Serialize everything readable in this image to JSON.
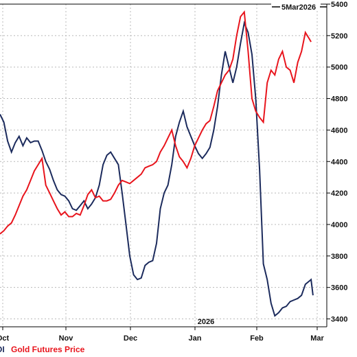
{
  "chart_data": {
    "type": "line",
    "date_label": "5Mar2026",
    "year_label": "2026",
    "x_tick_labels": [
      "Oct",
      "Nov",
      "Dec",
      "Jan",
      "Feb",
      "Mar"
    ],
    "y_axis": {
      "min": 3350,
      "max": 5400,
      "ticks": [
        3400,
        3600,
        3800,
        4000,
        4200,
        4400,
        4600,
        4800,
        5000,
        5200,
        5400
      ],
      "side": "right"
    },
    "grid": true,
    "legend": {
      "placement": "bottom-left",
      "entries": [
        "OI",
        "Gold Futures Price"
      ]
    },
    "colors": {
      "oi": "#1b2a5c",
      "gold": "#e8141c",
      "grid": "#b8b8b8",
      "axis": "#000000"
    },
    "series": [
      {
        "name": "OI",
        "values": [
          [
            0,
            4700
          ],
          [
            2,
            4650
          ],
          [
            4,
            4530
          ],
          [
            6,
            4460
          ],
          [
            8,
            4520
          ],
          [
            10,
            4560
          ],
          [
            12,
            4500
          ],
          [
            14,
            4550
          ],
          [
            16,
            4520
          ],
          [
            18,
            4530
          ],
          [
            20,
            4530
          ],
          [
            22,
            4470
          ],
          [
            24,
            4400
          ],
          [
            26,
            4350
          ],
          [
            28,
            4280
          ],
          [
            30,
            4220
          ],
          [
            32,
            4190
          ],
          [
            34,
            4180
          ],
          [
            36,
            4150
          ],
          [
            38,
            4100
          ],
          [
            40,
            4090
          ],
          [
            42,
            4120
          ],
          [
            44,
            4150
          ],
          [
            46,
            4100
          ],
          [
            48,
            4130
          ],
          [
            50,
            4170
          ],
          [
            52,
            4250
          ],
          [
            54,
            4380
          ],
          [
            56,
            4440
          ],
          [
            58,
            4460
          ],
          [
            60,
            4420
          ],
          [
            62,
            4380
          ],
          [
            64,
            4200
          ],
          [
            66,
            4000
          ],
          [
            68,
            3800
          ],
          [
            70,
            3680
          ],
          [
            72,
            3650
          ],
          [
            74,
            3660
          ],
          [
            76,
            3740
          ],
          [
            78,
            3760
          ],
          [
            80,
            3770
          ],
          [
            82,
            3880
          ],
          [
            84,
            4100
          ],
          [
            86,
            4200
          ],
          [
            88,
            4250
          ],
          [
            90,
            4380
          ],
          [
            92,
            4560
          ],
          [
            94,
            4650
          ],
          [
            96,
            4720
          ],
          [
            98,
            4620
          ],
          [
            100,
            4560
          ],
          [
            102,
            4500
          ],
          [
            104,
            4450
          ],
          [
            106,
            4420
          ],
          [
            108,
            4450
          ],
          [
            110,
            4490
          ],
          [
            112,
            4600
          ],
          [
            114,
            4750
          ],
          [
            116,
            4950
          ],
          [
            118,
            5100
          ],
          [
            120,
            5000
          ],
          [
            122,
            4900
          ],
          [
            124,
            5000
          ],
          [
            126,
            5150
          ],
          [
            128,
            5280
          ],
          [
            130,
            5220
          ],
          [
            132,
            5080
          ],
          [
            134,
            4800
          ],
          [
            136,
            4350
          ],
          [
            138,
            3750
          ],
          [
            140,
            3650
          ],
          [
            142,
            3500
          ],
          [
            144,
            3420
          ],
          [
            146,
            3440
          ],
          [
            148,
            3470
          ],
          [
            150,
            3480
          ],
          [
            152,
            3510
          ],
          [
            154,
            3520
          ],
          [
            156,
            3530
          ],
          [
            158,
            3550
          ],
          [
            160,
            3620
          ],
          [
            162,
            3640
          ],
          [
            163,
            3650
          ],
          [
            164,
            3550
          ]
        ]
      },
      {
        "name": "Gold Futures Price",
        "values": [
          [
            0,
            3940
          ],
          [
            2,
            3960
          ],
          [
            4,
            3990
          ],
          [
            6,
            4010
          ],
          [
            8,
            4060
          ],
          [
            10,
            4120
          ],
          [
            12,
            4180
          ],
          [
            14,
            4220
          ],
          [
            16,
            4280
          ],
          [
            18,
            4340
          ],
          [
            20,
            4380
          ],
          [
            22,
            4420
          ],
          [
            24,
            4250
          ],
          [
            26,
            4200
          ],
          [
            28,
            4150
          ],
          [
            30,
            4100
          ],
          [
            32,
            4060
          ],
          [
            34,
            4080
          ],
          [
            36,
            4050
          ],
          [
            38,
            4050
          ],
          [
            40,
            4070
          ],
          [
            42,
            4060
          ],
          [
            44,
            4120
          ],
          [
            46,
            4190
          ],
          [
            48,
            4220
          ],
          [
            50,
            4170
          ],
          [
            52,
            4180
          ],
          [
            54,
            4150
          ],
          [
            56,
            4150
          ],
          [
            58,
            4160
          ],
          [
            60,
            4200
          ],
          [
            62,
            4250
          ],
          [
            64,
            4280
          ],
          [
            66,
            4270
          ],
          [
            68,
            4260
          ],
          [
            70,
            4280
          ],
          [
            72,
            4300
          ],
          [
            74,
            4320
          ],
          [
            76,
            4360
          ],
          [
            78,
            4370
          ],
          [
            80,
            4380
          ],
          [
            82,
            4400
          ],
          [
            84,
            4460
          ],
          [
            86,
            4500
          ],
          [
            88,
            4550
          ],
          [
            90,
            4600
          ],
          [
            92,
            4500
          ],
          [
            94,
            4430
          ],
          [
            96,
            4400
          ],
          [
            98,
            4360
          ],
          [
            100,
            4420
          ],
          [
            102,
            4500
          ],
          [
            104,
            4550
          ],
          [
            106,
            4600
          ],
          [
            108,
            4640
          ],
          [
            110,
            4660
          ],
          [
            112,
            4750
          ],
          [
            114,
            4850
          ],
          [
            116,
            4900
          ],
          [
            118,
            4950
          ],
          [
            120,
            4980
          ],
          [
            122,
            5050
          ],
          [
            124,
            5200
          ],
          [
            126,
            5320
          ],
          [
            128,
            5350
          ],
          [
            130,
            5100
          ],
          [
            132,
            4800
          ],
          [
            134,
            4720
          ],
          [
            136,
            4680
          ],
          [
            138,
            4650
          ],
          [
            140,
            4900
          ],
          [
            142,
            4980
          ],
          [
            144,
            4950
          ],
          [
            146,
            5050
          ],
          [
            148,
            5100
          ],
          [
            150,
            5000
          ],
          [
            152,
            4980
          ],
          [
            154,
            4900
          ],
          [
            156,
            5030
          ],
          [
            158,
            5100
          ],
          [
            160,
            5220
          ],
          [
            162,
            5180
          ],
          [
            163,
            5160
          ]
        ]
      }
    ]
  }
}
